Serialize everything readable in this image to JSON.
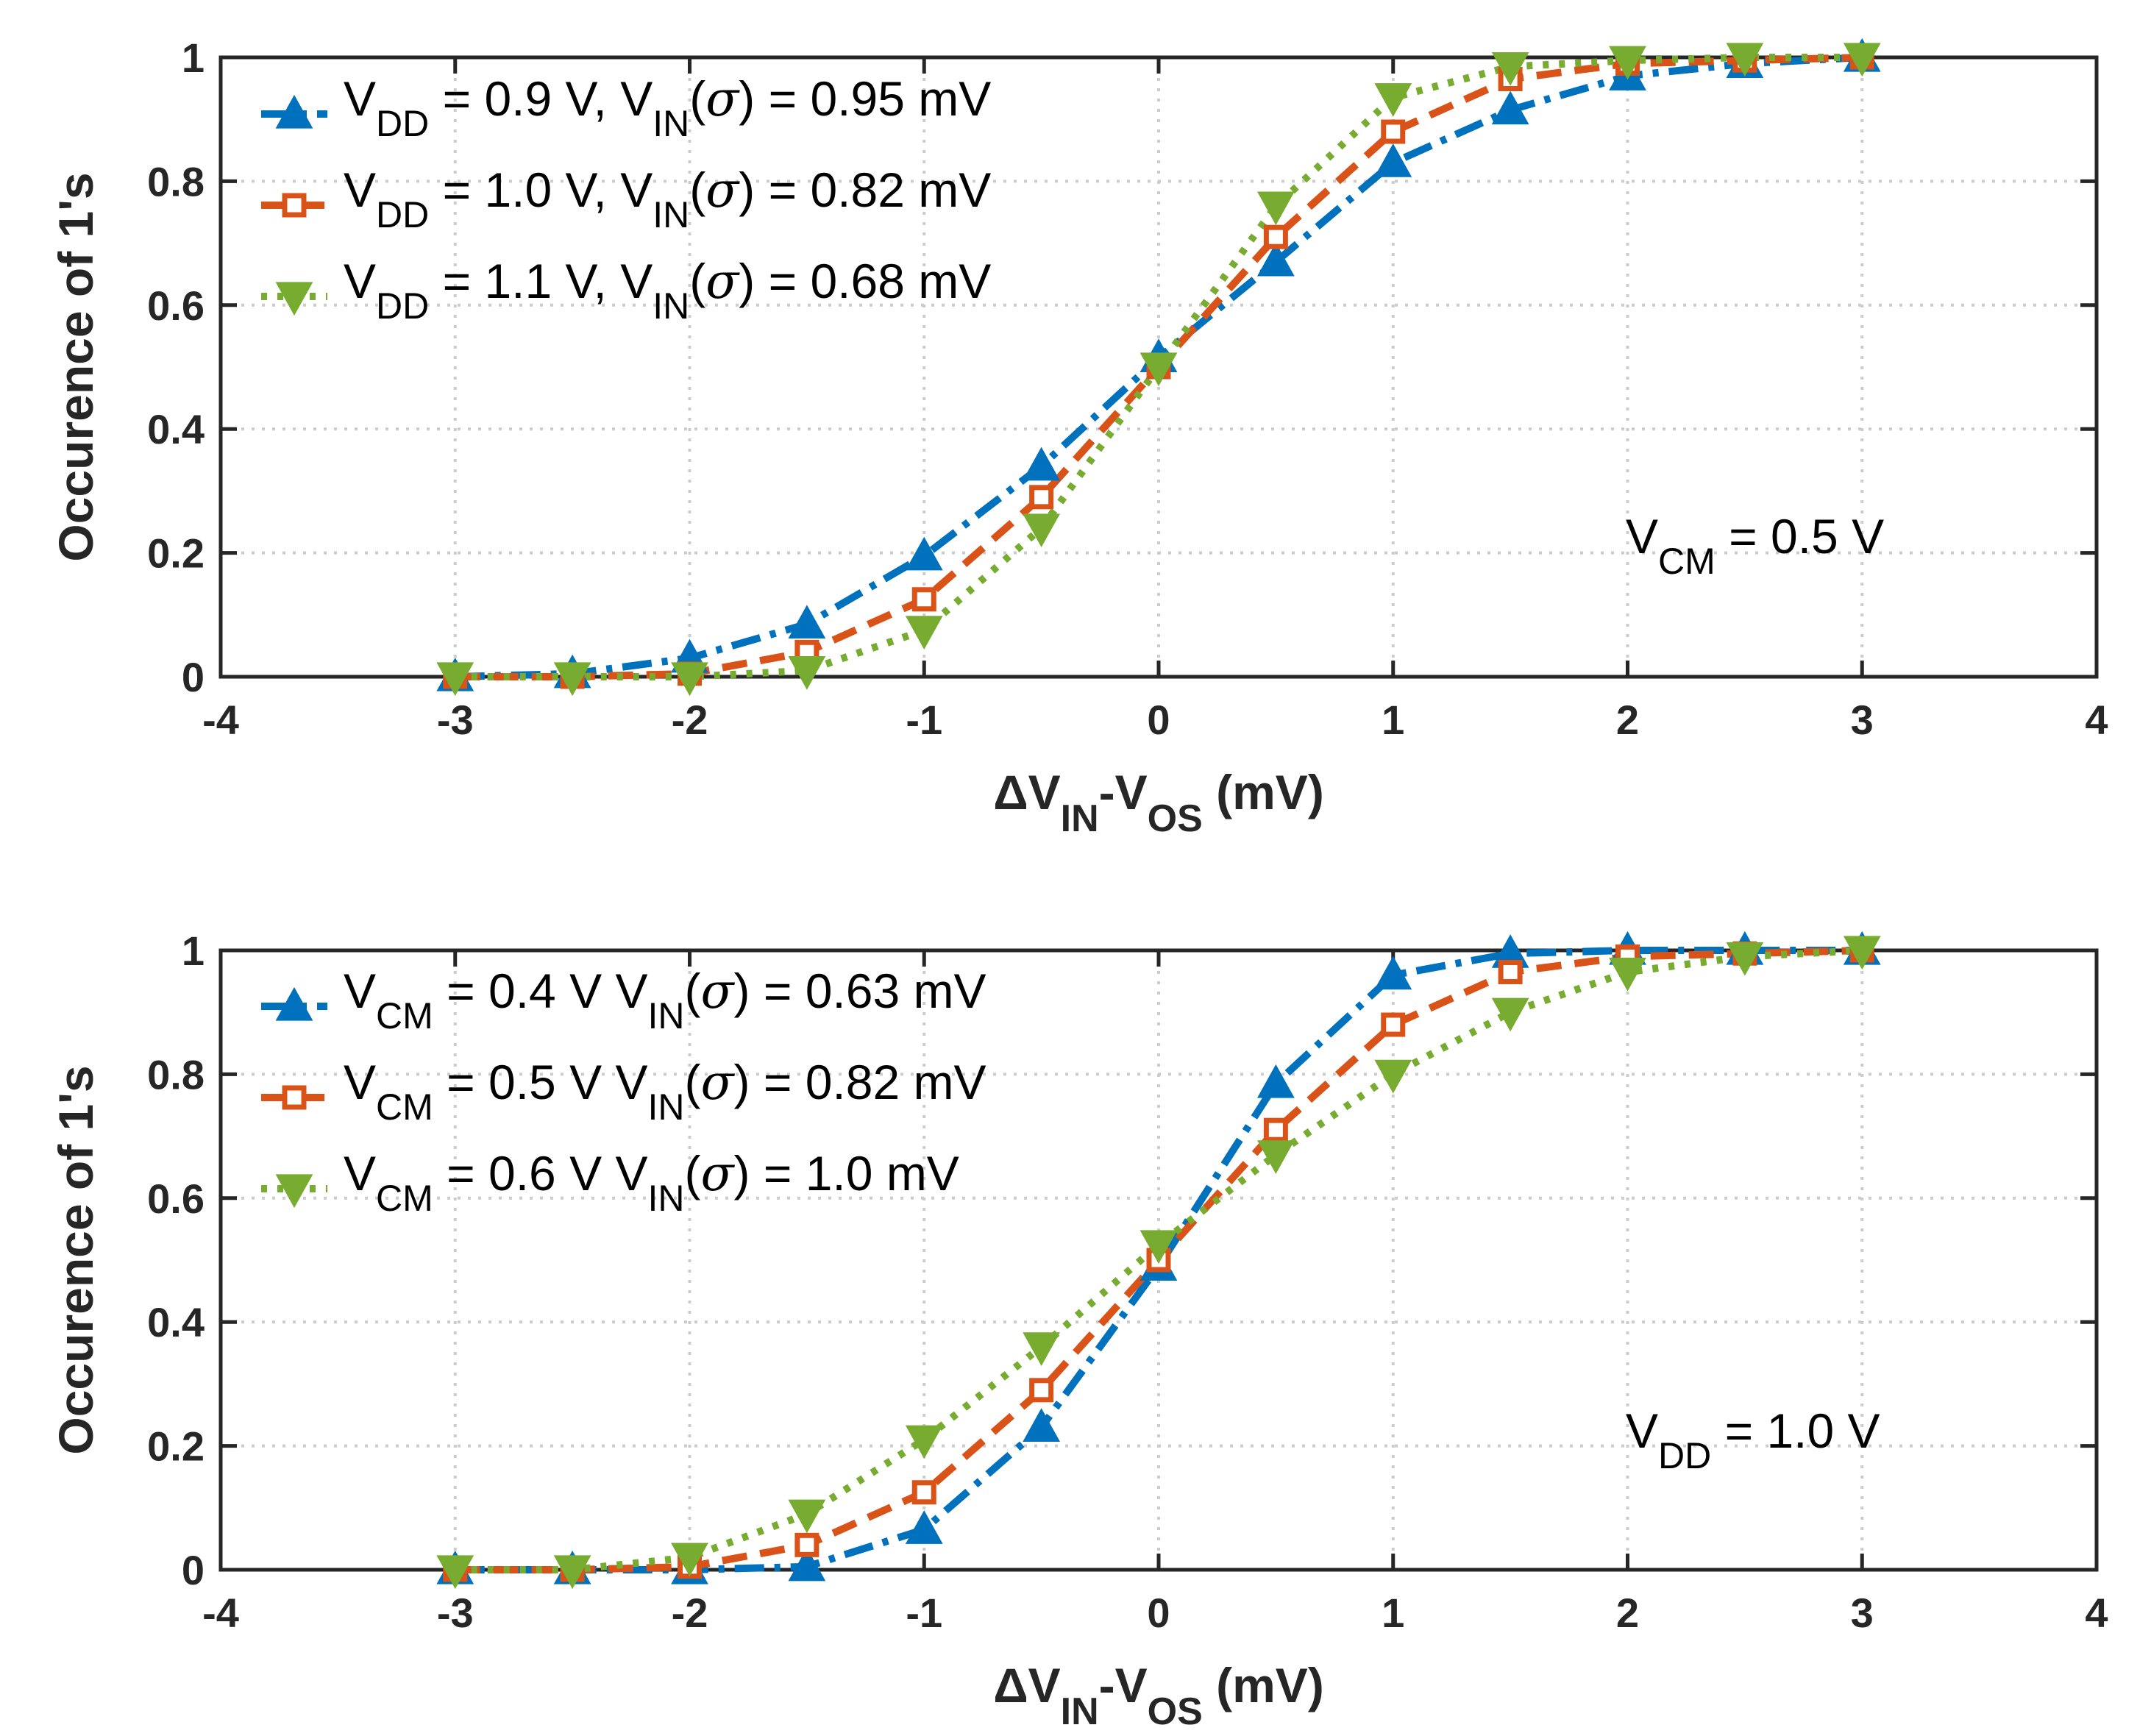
{
  "chart_data": [
    {
      "type": "line",
      "x": [
        -3,
        -2.5,
        -2,
        -1.5,
        -1,
        -0.5,
        0,
        0.5,
        1,
        1.5,
        2,
        2.5,
        3
      ],
      "xlim": [
        -4,
        4
      ],
      "ylim": [
        0,
        1
      ],
      "xticks": [
        "-4",
        "-3",
        "-2",
        "-1",
        "0",
        "1",
        "2",
        "3",
        "4"
      ],
      "yticks": [
        "0",
        "0.2",
        "0.4",
        "0.6",
        "0.8",
        "1"
      ],
      "xlabel": {
        "delta": "Δ",
        "main": "V",
        "sub": "IN",
        "mid": "-V",
        "sub2": "OS",
        "tail": " (mV)"
      },
      "ylabel": "Occurence of 1's",
      "grid": true,
      "legend_placement": "top-left",
      "annotation": {
        "main": "V",
        "sub": "CM",
        "tail": " = 0.5 V"
      },
      "series": [
        {
          "name": "V_DD = 0.9 V, V_IN(σ) = 0.95 mV",
          "legend": {
            "v": "V",
            "sub1": "DD",
            "mid": " = 0.9 V, V",
            "sub2": "IN",
            "open": "(",
            "sigma": "σ",
            "tail": ") = 0.95 mV"
          },
          "color": "#0072BD",
          "marker": "triangle-up",
          "line": "dashdot",
          "values": [
            0.0,
            0.005,
            0.03,
            0.085,
            0.195,
            0.34,
            0.515,
            0.67,
            0.83,
            0.915,
            0.97,
            0.99,
            1.0
          ]
        },
        {
          "name": "V_DD = 1.0 V, V_IN(σ) = 0.82 mV",
          "legend": {
            "v": "V",
            "sub1": "DD",
            "mid": " = 1.0 V, V",
            "sub2": "IN",
            "open": "(",
            "sigma": "σ",
            "tail": ") = 0.82 mV"
          },
          "color": "#D95319",
          "marker": "square",
          "line": "dashed",
          "values": [
            0.0,
            0.0,
            0.005,
            0.04,
            0.125,
            0.29,
            0.5,
            0.71,
            0.88,
            0.965,
            0.99,
            0.995,
            1.0
          ]
        },
        {
          "name": "V_DD = 1.1 V, V_IN(σ) = 0.68 mV",
          "legend": {
            "v": "V",
            "sub1": "DD",
            "mid": " = 1.1 V, V",
            "sub2": "IN",
            "open": "(",
            "sigma": "σ",
            "tail": ") = 0.68 mV"
          },
          "color": "#77AC30",
          "marker": "triangle-down",
          "line": "dotted",
          "values": [
            0.0,
            0.0,
            0.0,
            0.01,
            0.075,
            0.24,
            0.5,
            0.76,
            0.935,
            0.985,
            0.995,
            1.0,
            1.0
          ]
        }
      ]
    },
    {
      "type": "line",
      "x": [
        -3,
        -2.5,
        -2,
        -1.5,
        -1,
        -0.5,
        0,
        0.5,
        1,
        1.5,
        2,
        2.5,
        3
      ],
      "xlim": [
        -4,
        4
      ],
      "ylim": [
        0,
        1
      ],
      "xticks": [
        "-4",
        "-3",
        "-2",
        "-1",
        "0",
        "1",
        "2",
        "3",
        "4"
      ],
      "yticks": [
        "0",
        "0.2",
        "0.4",
        "0.6",
        "0.8",
        "1"
      ],
      "xlabel": {
        "delta": "Δ",
        "main": "V",
        "sub": "IN",
        "mid": "-V",
        "sub2": "OS",
        "tail": " (mV)"
      },
      "ylabel": "Occurence of 1's",
      "grid": true,
      "legend_placement": "top-left",
      "annotation": {
        "main": "V",
        "sub": "DD",
        "tail": " = 1.0 V"
      },
      "series": [
        {
          "name": "V_CM = 0.4 V V_IN(σ) = 0.63 mV",
          "legend": {
            "v": "V",
            "sub1": "CM",
            "mid": " = 0.4 V V",
            "sub2": "IN",
            "open": "(",
            "sigma": "σ",
            "tail": ") = 0.63 mV"
          },
          "color": "#0072BD",
          "marker": "triangle-up",
          "line": "dashdot",
          "values": [
            0.0,
            0.0,
            0.0,
            0.005,
            0.065,
            0.23,
            0.49,
            0.785,
            0.96,
            0.995,
            1.0,
            1.0,
            1.0
          ]
        },
        {
          "name": "V_CM = 0.5 V V_IN(σ) = 0.82 mV",
          "legend": {
            "v": "V",
            "sub1": "CM",
            "mid": " = 0.5 V V",
            "sub2": "IN",
            "open": "(",
            "sigma": "σ",
            "tail": ") = 0.82 mV"
          },
          "color": "#D95319",
          "marker": "square",
          "line": "dashed",
          "values": [
            0.0,
            0.0,
            0.005,
            0.04,
            0.125,
            0.29,
            0.5,
            0.71,
            0.88,
            0.965,
            0.99,
            0.995,
            1.0
          ]
        },
        {
          "name": "V_CM = 0.6 V V_IN(σ) = 1.0 mV",
          "legend": {
            "v": "V",
            "sub1": "CM",
            "mid": " = 0.6 V V",
            "sub2": "IN",
            "open": "(",
            "sigma": "σ",
            "tail": ") = 1.0 mV"
          },
          "color": "#77AC30",
          "marker": "triangle-down",
          "line": "dotted",
          "values": [
            0.0,
            0.0,
            0.02,
            0.09,
            0.21,
            0.36,
            0.525,
            0.67,
            0.8,
            0.9,
            0.965,
            0.99,
            1.0
          ]
        }
      ]
    }
  ]
}
